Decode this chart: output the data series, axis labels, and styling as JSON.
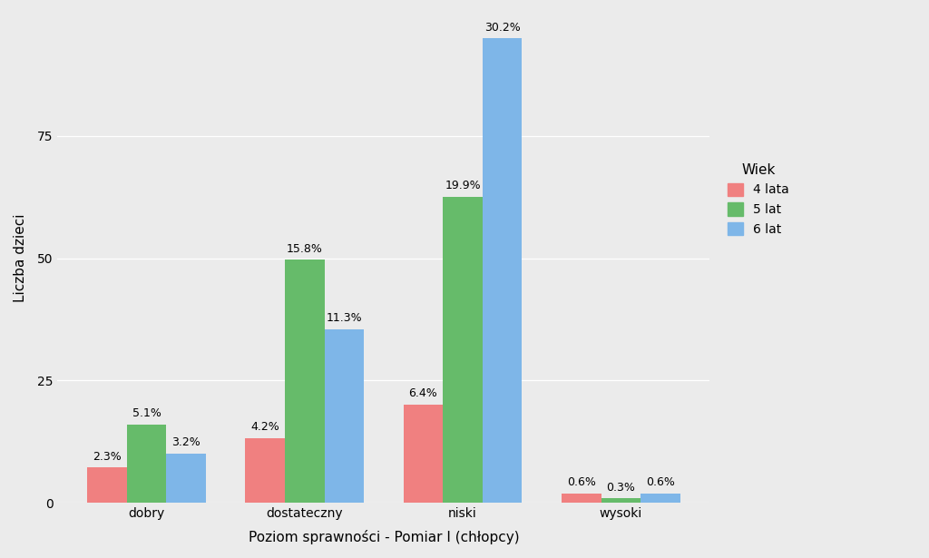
{
  "categories": [
    "dobry",
    "dostateczny",
    "niski",
    "wysoki"
  ],
  "groups": [
    "4 lata",
    "5 lat",
    "6 lat"
  ],
  "values": {
    "4 lata": [
      7.2,
      13.2,
      20.1,
      1.9
    ],
    "5 lat": [
      16.0,
      49.7,
      62.6,
      0.9
    ],
    "6 lat": [
      10.1,
      35.5,
      95.0,
      1.9
    ]
  },
  "bar_colors": {
    "4 lata": "#F08080",
    "5 lat": "#66BB6A",
    "6 lat": "#7EB6E8"
  },
  "labels": {
    "4 lata": [
      "2.3%",
      "4.2%",
      "6.4%",
      "0.6%"
    ],
    "5 lat": [
      "5.1%",
      "15.8%",
      "19.9%",
      "0.3%"
    ],
    "6 lat": [
      "3.2%",
      "11.3%",
      "30.2%",
      "0.6%"
    ]
  },
  "xlabel": "Poziom sprawności - Pomiar I (chłopcy)",
  "ylabel": "Liczba dzieci",
  "legend_title": "Wiek",
  "ylim": [
    0,
    100
  ],
  "yticks": [
    0,
    25,
    50,
    75
  ],
  "background_color": "#EBEBEB",
  "panel_color": "#EBEBEB",
  "bar_width": 0.25,
  "axis_fontsize": 11,
  "tick_fontsize": 10,
  "label_fontsize": 9
}
